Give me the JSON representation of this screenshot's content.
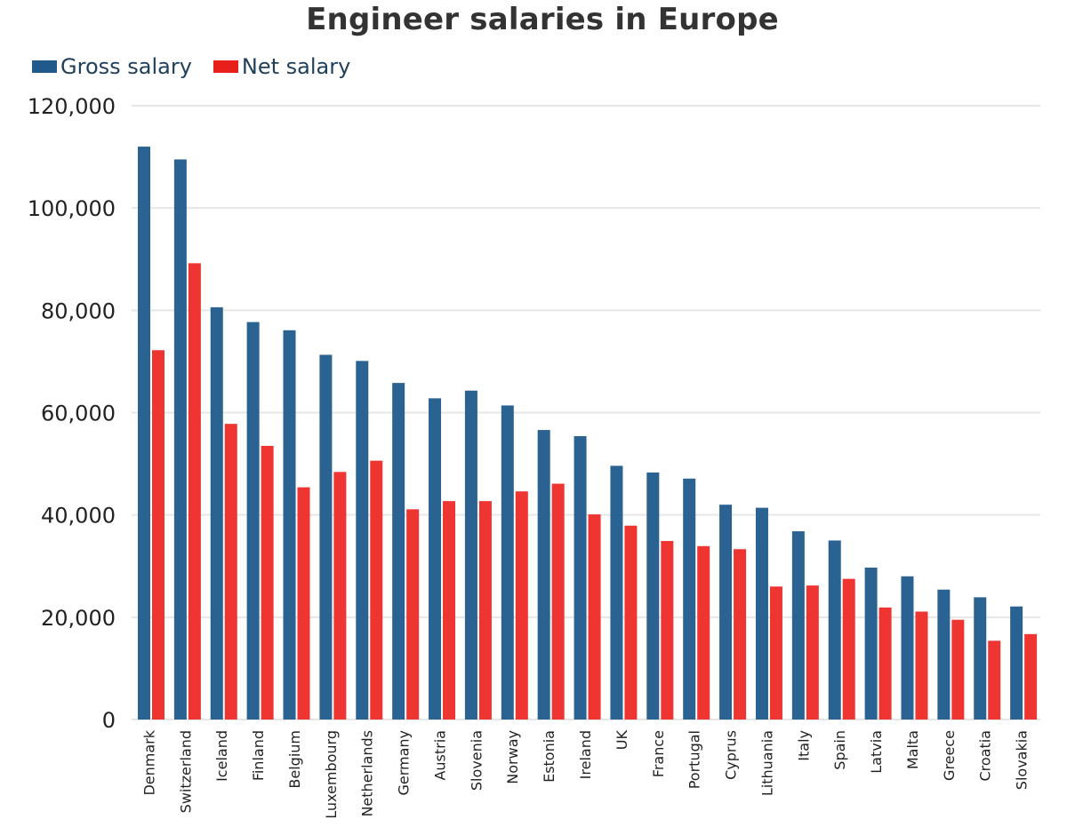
{
  "chart_data": {
    "type": "bar",
    "title": "Engineer salaries in Europe",
    "xlabel": "",
    "ylabel": "",
    "ylim": [
      0,
      120000
    ],
    "yticks": [
      0,
      20000,
      40000,
      60000,
      80000,
      100000,
      120000
    ],
    "ytick_labels": [
      "0",
      "20,000",
      "40,000",
      "60,000",
      "80,000",
      "100,000",
      "120,000"
    ],
    "grid": true,
    "legend_position": "top-left",
    "categories": [
      "Denmark",
      "Switzerland",
      "Iceland",
      "Finland",
      "Belgium",
      "Luxembourg",
      "Netherlands",
      "Germany",
      "Austria",
      "Slovenia",
      "Norway",
      "Estonia",
      "Ireland",
      "UK",
      "France",
      "Portugal",
      "Cyprus",
      "Lithuania",
      "Italy",
      "Spain",
      "Latvia",
      "Malta",
      "Greece",
      "Croatia",
      "Slovakia"
    ],
    "series": [
      {
        "name": "Gross salary",
        "color": "#2a6391",
        "legend_color": "#1f5a8a",
        "values": [
          112000,
          109500,
          80600,
          77700,
          76100,
          71300,
          70100,
          65800,
          62800,
          64300,
          61400,
          56600,
          55400,
          49600,
          48300,
          47100,
          42000,
          41400,
          36800,
          35000,
          29700,
          28000,
          25400,
          23900,
          22100
        ]
      },
      {
        "name": "Net salary",
        "color": "#ee3532",
        "legend_color": "#e8201c",
        "values": [
          72200,
          89200,
          57800,
          53500,
          45400,
          48400,
          50600,
          41100,
          42700,
          42700,
          44600,
          46100,
          40100,
          37900,
          34900,
          33900,
          33300,
          26000,
          26200,
          27500,
          21900,
          21100,
          19500,
          15400,
          16700
        ]
      }
    ]
  }
}
